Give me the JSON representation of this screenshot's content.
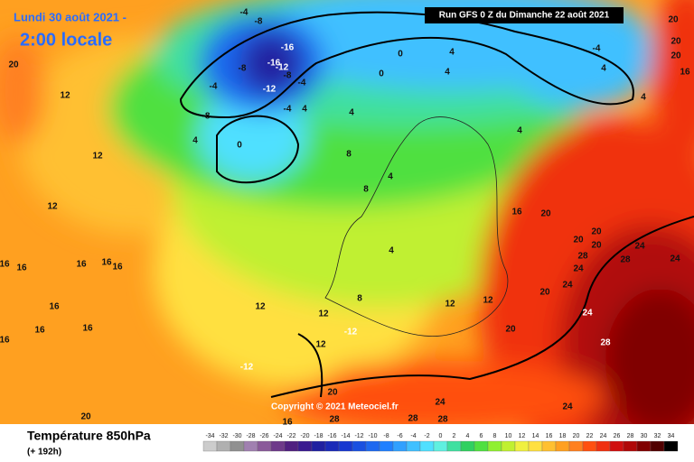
{
  "header": {
    "date_line": "Lundi 30 août 2021 -",
    "time_line": "2:00 locale",
    "run": "Run GFS 0 Z du Dimanche 22 août 2021",
    "copyright": "Copyright © 2021 Meteociel.fr"
  },
  "footer": {
    "title": "Température 850hPa",
    "lead": "(+ 192h)"
  },
  "scale": {
    "values": [
      -34,
      -32,
      -30,
      -28,
      -26,
      -24,
      -22,
      -20,
      -18,
      -16,
      -14,
      -12,
      -10,
      -8,
      -6,
      -4,
      -2,
      0,
      2,
      4,
      6,
      8,
      10,
      12,
      14,
      16,
      18,
      20,
      22,
      24,
      26,
      28,
      30,
      32,
      34
    ],
    "colors": [
      "#cccccc",
      "#b0b0b0",
      "#909090",
      "#a080b0",
      "#8a5a9a",
      "#6e3a8a",
      "#502080",
      "#3a1a90",
      "#2020a0",
      "#1a2ab8",
      "#1838d0",
      "#1a50e0",
      "#1e68f0",
      "#2080ff",
      "#30a0ff",
      "#40c0ff",
      "#50e0ff",
      "#60f0e0",
      "#40e0a0",
      "#30d060",
      "#50e040",
      "#90f030",
      "#c0f030",
      "#f0f040",
      "#ffe040",
      "#ffc030",
      "#ffa020",
      "#ff8020",
      "#ff5010",
      "#f03010",
      "#d01010",
      "#b00808",
      "#800000",
      "#500000",
      "#000000"
    ]
  },
  "map_labels": [
    20,
    12,
    12,
    12,
    16,
    16,
    16,
    16,
    16,
    16,
    16,
    16,
    16,
    12,
    12,
    -12,
    12,
    -12,
    20,
    16,
    20,
    28,
    28,
    28,
    24,
    24,
    28,
    24,
    20,
    24,
    24,
    28,
    20,
    20,
    20,
    28,
    24,
    20,
    16,
    12,
    20,
    12,
    8,
    4,
    8,
    4,
    8,
    4,
    -4,
    -8,
    -16,
    -16,
    -12,
    -8,
    -12,
    -8,
    -4,
    -8,
    4,
    0,
    -4,
    -4,
    4,
    0,
    0,
    4,
    4,
    -4,
    4,
    4,
    4,
    20,
    20,
    16,
    24,
    20
  ]
}
